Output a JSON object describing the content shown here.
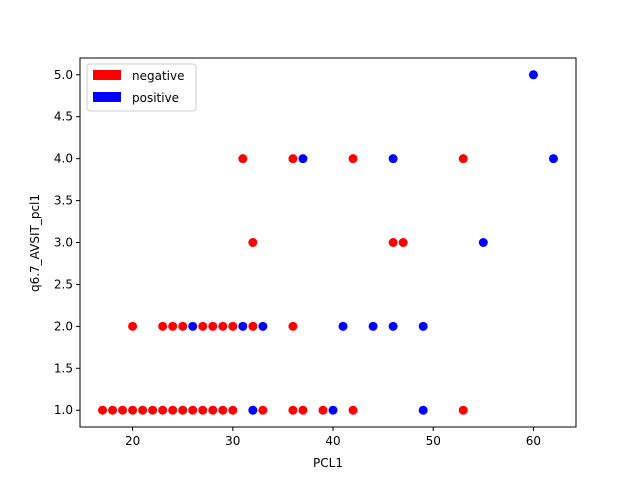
{
  "chart_data": {
    "type": "scatter",
    "title": "",
    "xlabel": "PCL1",
    "ylabel": "q6.7_AVSIT_pcl1",
    "xlim": [
      14.75,
      64.25
    ],
    "ylim": [
      0.8,
      5.2
    ],
    "xticks": [
      20,
      30,
      40,
      50,
      60
    ],
    "yticks": [
      1.0,
      1.5,
      2.0,
      2.5,
      3.0,
      3.5,
      4.0,
      4.5,
      5.0
    ],
    "grid": false,
    "legend_position": "top-left",
    "series": [
      {
        "name": "negative",
        "color": "#ff0000",
        "points": [
          [
            17,
            1
          ],
          [
            18,
            1
          ],
          [
            19,
            1
          ],
          [
            20,
            1
          ],
          [
            21,
            1
          ],
          [
            22,
            1
          ],
          [
            23,
            1
          ],
          [
            24,
            1
          ],
          [
            25,
            1
          ],
          [
            26,
            1
          ],
          [
            27,
            1
          ],
          [
            28,
            1
          ],
          [
            29,
            1
          ],
          [
            30,
            1
          ],
          [
            33,
            1
          ],
          [
            36,
            1
          ],
          [
            37,
            1
          ],
          [
            39,
            1
          ],
          [
            42,
            1
          ],
          [
            53,
            1
          ],
          [
            20,
            2
          ],
          [
            23,
            2
          ],
          [
            24,
            2
          ],
          [
            25,
            2
          ],
          [
            27,
            2
          ],
          [
            28,
            2
          ],
          [
            29,
            2
          ],
          [
            30,
            2
          ],
          [
            32,
            2
          ],
          [
            36,
            2
          ],
          [
            32,
            3
          ],
          [
            46,
            3
          ],
          [
            47,
            3
          ],
          [
            31,
            4
          ],
          [
            36,
            4
          ],
          [
            42,
            4
          ],
          [
            53,
            4
          ]
        ]
      },
      {
        "name": "positive",
        "color": "#0000ff",
        "points": [
          [
            32,
            1
          ],
          [
            40,
            1
          ],
          [
            49,
            1
          ],
          [
            26,
            2
          ],
          [
            31,
            2
          ],
          [
            33,
            2
          ],
          [
            41,
            2
          ],
          [
            44,
            2
          ],
          [
            46,
            2
          ],
          [
            49,
            2
          ],
          [
            55,
            3
          ],
          [
            37,
            4
          ],
          [
            46,
            4
          ],
          [
            62,
            4
          ],
          [
            60,
            5
          ]
        ]
      }
    ]
  }
}
